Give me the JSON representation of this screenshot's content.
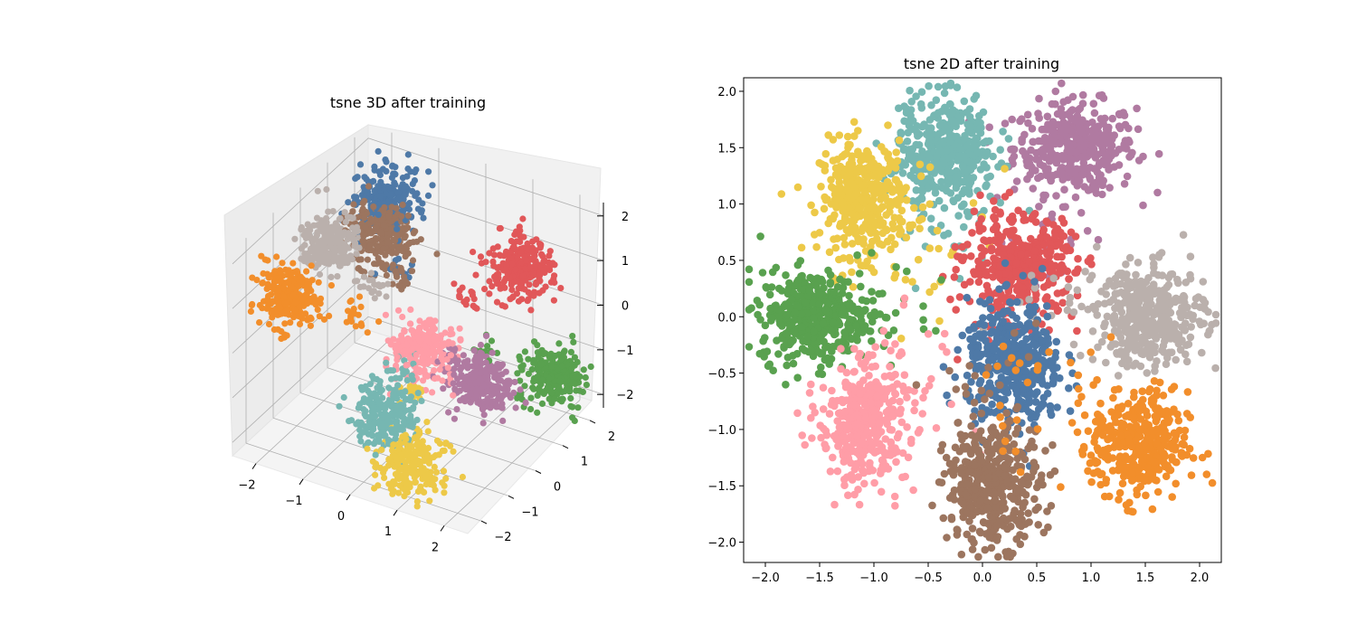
{
  "chart_data": [
    {
      "type": "scatter",
      "projection": "3d",
      "title": "tsne 3D after training",
      "xlim": [
        -2.5,
        2.5
      ],
      "ylim": [
        -2.5,
        2.5
      ],
      "zlim": [
        -2.3,
        2.3
      ],
      "x_ticks": [
        "−2",
        "−1",
        "0",
        "1",
        "2"
      ],
      "y_ticks": [
        "−2",
        "−1",
        "0",
        "1",
        "2"
      ],
      "z_ticks": [
        "−2",
        "−1",
        "0",
        "1",
        "2"
      ],
      "grid": true,
      "points_per_cluster": 260,
      "clusters": [
        {
          "color": "#F28E2B",
          "center": [
            -1.8,
            -1.6,
            1.0
          ],
          "spread": 0.28
        },
        {
          "color": "#BAB0AC",
          "center": [
            -1.7,
            -0.3,
            1.5
          ],
          "spread": 0.28
        },
        {
          "color": "#9C755F",
          "center": [
            -1.2,
            0.7,
            1.3
          ],
          "spread": 0.3
        },
        {
          "color": "#4E79A7",
          "center": [
            -1.5,
            1.4,
            1.6
          ],
          "spread": 0.3
        },
        {
          "color": "#E15759",
          "center": [
            1.0,
            2.0,
            0.6
          ],
          "spread": 0.3
        },
        {
          "color": "#76B7B2",
          "center": [
            0.2,
            -1.6,
            -0.9
          ],
          "spread": 0.3
        },
        {
          "color": "#FF9DA7",
          "center": [
            0.2,
            -0.2,
            -0.3
          ],
          "spread": 0.3
        },
        {
          "color": "#B07AA1",
          "center": [
            1.2,
            0.2,
            -0.9
          ],
          "spread": 0.28
        },
        {
          "color": "#EDC948",
          "center": [
            0.9,
            -1.8,
            -1.7
          ],
          "spread": 0.3
        },
        {
          "color": "#59A14F",
          "center": [
            2.0,
            1.5,
            -1.2
          ],
          "spread": 0.28
        }
      ]
    },
    {
      "type": "scatter",
      "title": "tsne 2D after training",
      "xlim": [
        -2.2,
        2.2
      ],
      "ylim": [
        -2.18,
        2.12
      ],
      "x_ticks": [
        -2.0,
        -1.5,
        -1.0,
        -0.5,
        0.0,
        0.5,
        1.0,
        1.5,
        2.0
      ],
      "y_ticks": [
        -2.0,
        -1.5,
        -1.0,
        -0.5,
        0.0,
        0.5,
        1.0,
        1.5,
        2.0
      ],
      "grid": false,
      "points_per_cluster": 420,
      "clusters": [
        {
          "color": "#B07AA1",
          "center": [
            0.85,
            1.5
          ],
          "spread": [
            0.28,
            0.2
          ]
        },
        {
          "color": "#76B7B2",
          "center": [
            -0.35,
            1.45
          ],
          "spread": [
            0.22,
            0.25
          ]
        },
        {
          "color": "#EDC948",
          "center": [
            -1.1,
            1.05
          ],
          "spread": [
            0.2,
            0.25
          ]
        },
        {
          "color": "#E15759",
          "center": [
            0.35,
            0.45
          ],
          "spread": [
            0.25,
            0.22
          ]
        },
        {
          "color": "#59A14F",
          "center": [
            -1.55,
            0.0
          ],
          "spread": [
            0.25,
            0.2
          ]
        },
        {
          "color": "#BAB0AC",
          "center": [
            1.55,
            0.0
          ],
          "spread": [
            0.25,
            0.22
          ]
        },
        {
          "color": "#4E79A7",
          "center": [
            0.3,
            -0.45
          ],
          "spread": [
            0.22,
            0.28
          ]
        },
        {
          "color": "#FF9DA7",
          "center": [
            -1.1,
            -0.95
          ],
          "spread": [
            0.2,
            0.26
          ]
        },
        {
          "color": "#9C755F",
          "center": [
            0.1,
            -1.5
          ],
          "spread": [
            0.22,
            0.26
          ]
        },
        {
          "color": "#F28E2B",
          "center": [
            1.45,
            -1.15
          ],
          "spread": [
            0.22,
            0.24
          ]
        }
      ]
    }
  ]
}
